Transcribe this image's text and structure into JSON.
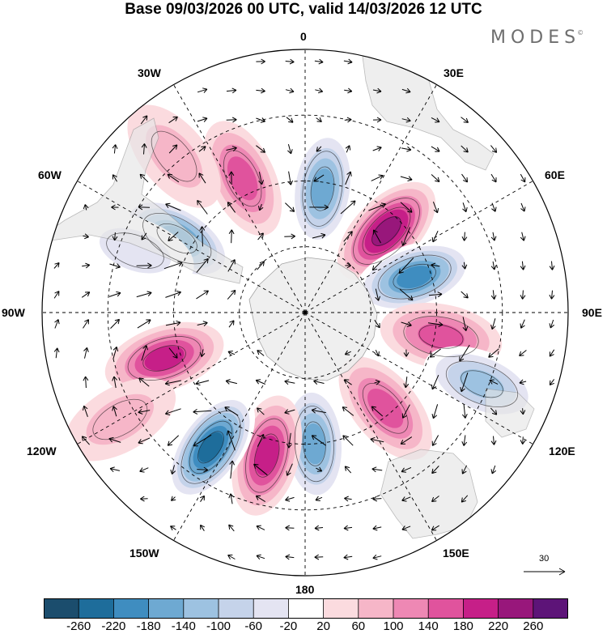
{
  "title": "Base 09/03/2026 00 UTC, valid 14/03/2026 12 UTC",
  "brand": "MODES",
  "brand_mark": "©",
  "map": {
    "projection": "south-polar-stereographic",
    "longitude_labels": {
      "lon_0": "0",
      "lon_30e": "30E",
      "lon_60e": "60E",
      "lon_90e": "90E",
      "lon_120e": "120E",
      "lon_150e": "150E",
      "lon_180": "180",
      "lon_150w": "150W",
      "lon_120w": "120W",
      "lon_90w": "90W",
      "lon_60w": "60W",
      "lon_30w": "30W"
    },
    "anomalies": [
      {
        "lon": 45,
        "lat": -55,
        "value": 230
      },
      {
        "lon": 8,
        "lat": -52,
        "value": -190
      },
      {
        "lon": 72,
        "lat": -55,
        "value": -200
      },
      {
        "lon": 100,
        "lat": -48,
        "value": 140
      },
      {
        "lon": 112,
        "lat": -32,
        "value": -140
      },
      {
        "lon": 140,
        "lat": -52,
        "value": 120
      },
      {
        "lon": 176,
        "lat": -50,
        "value": -170
      },
      {
        "lon": -165,
        "lat": -45,
        "value": 190
      },
      {
        "lon": -145,
        "lat": -40,
        "value": -250
      },
      {
        "lon": -108,
        "lat": -45,
        "value": 170
      },
      {
        "lon": -60,
        "lat": -45,
        "value": -220
      },
      {
        "lon": -25,
        "lat": -45,
        "value": 120
      },
      {
        "lon": -70,
        "lat": -35,
        "value": -60
      },
      {
        "lon": -40,
        "lat": -28,
        "value": 70
      },
      {
        "lon": -120,
        "lat": -25,
        "value": 60
      }
    ],
    "vector_reference": "30"
  },
  "colorbar": {
    "ticks": [
      "-260",
      "-220",
      "-180",
      "-140",
      "-100",
      "-60",
      "-20",
      "20",
      "60",
      "100",
      "140",
      "180",
      "220",
      "260"
    ],
    "colors": [
      "#1b4d6d",
      "#1e6d9b",
      "#3f8dc0",
      "#6ea9d2",
      "#9dc2e1",
      "#c5d3ea",
      "#e4e4f2",
      "#ffffff",
      "#fbdbdf",
      "#f6b6c8",
      "#ee88b4",
      "#e0539d",
      "#c61f88",
      "#98177b",
      "#5d1478"
    ]
  }
}
